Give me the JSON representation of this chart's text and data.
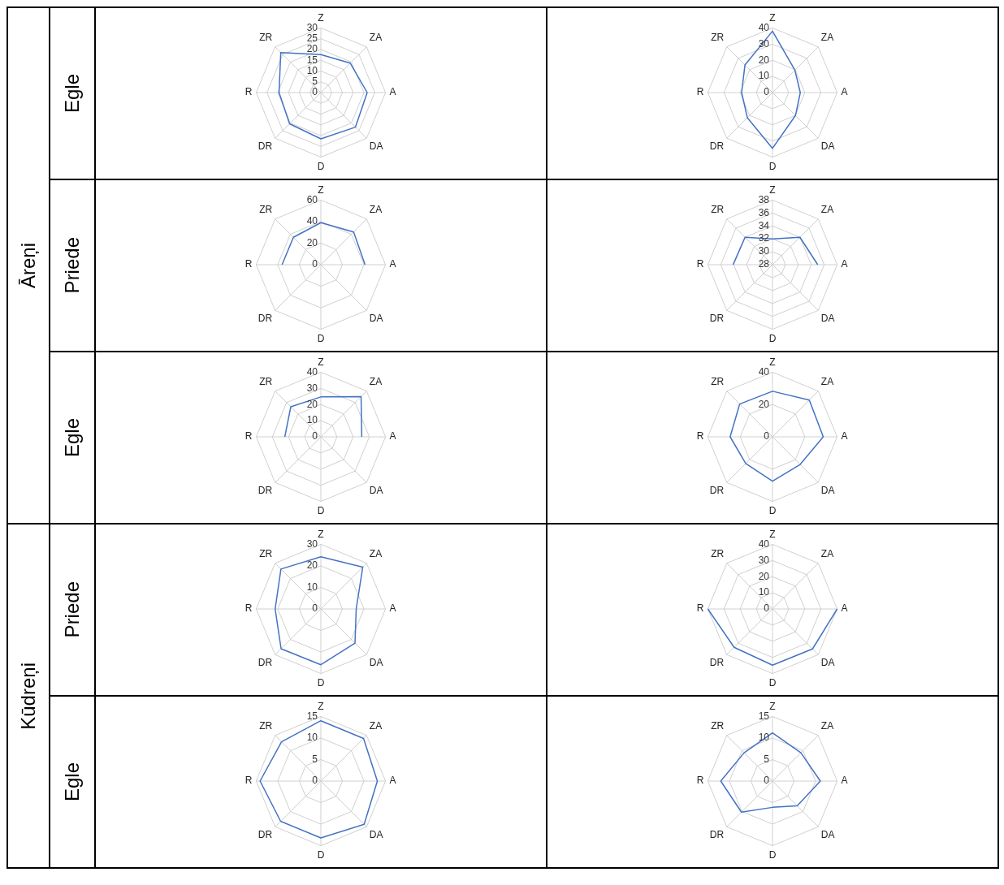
{
  "chart_data": [
    {
      "type": "radar",
      "title": "Egle",
      "subtitle": "Āreņi",
      "categories": [
        "Z",
        "ZA",
        "A",
        "DA",
        "D",
        "DR",
        "R",
        "ZR"
      ],
      "series": [
        {
          "color": "#4472c4",
          "values": [
            17.6,
            19.3,
            21.5,
            22.7,
            21.5,
            20.5,
            19.4,
            26.3
          ]
        }
      ],
      "ylim": [
        0,
        30
      ],
      "yticks": [
        0,
        5,
        10,
        15,
        20,
        25,
        30
      ],
      "grid": true,
      "marker": "none"
    },
    {
      "type": "radar",
      "categories": [
        "Z",
        "ZA",
        "A",
        "DA",
        "D",
        "DR",
        "R",
        "ZR"
      ],
      "series": [
        {
          "color": "#4472c4",
          "values": [
            38,
            19.6,
            17.2,
            20.1,
            34.5,
            22,
            19.1,
            24.1
          ]
        }
      ],
      "ylim": [
        0,
        40
      ],
      "yticks": [
        0,
        10,
        20,
        30,
        40
      ],
      "grid": true,
      "marker": "none"
    },
    {
      "type": "radar",
      "title": "Priede",
      "categories": [
        "Z",
        "ZA",
        "A",
        "DA",
        "D",
        "DR",
        "R",
        "ZR"
      ],
      "series": [
        {
          "color": "#4472c4",
          "values": [
            39,
            43,
            41,
            null,
            null,
            null,
            36,
            36
          ]
        }
      ],
      "ylim": [
        0,
        60
      ],
      "yticks": [
        0,
        20,
        40,
        60
      ],
      "grid": true,
      "marker": "none"
    },
    {
      "type": "radar",
      "categories": [
        "Z",
        "ZA",
        "A",
        "DA",
        "D",
        "DR",
        "R",
        "ZR"
      ],
      "series": [
        {
          "color": "#4472c4",
          "values": [
            32,
            34,
            35,
            null,
            null,
            null,
            34.1,
            34
          ]
        }
      ],
      "ylim": [
        28,
        38
      ],
      "yticks": [
        28,
        30,
        32,
        34,
        36,
        38
      ],
      "grid": true,
      "marker": "none"
    },
    {
      "type": "radar",
      "title": "Egle",
      "categories": [
        "Z",
        "ZA",
        "A",
        "DA",
        "D",
        "DR",
        "R",
        "ZR"
      ],
      "series": [
        {
          "color": "#4472c4",
          "values": [
            24.7,
            35.2,
            25.3,
            null,
            null,
            null,
            22.3,
            26.3
          ]
        }
      ],
      "ylim": [
        0,
        40
      ],
      "yticks": [
        0,
        10,
        20,
        30,
        40
      ],
      "grid": true,
      "marker": "none"
    },
    {
      "type": "radar",
      "categories": [
        "Z",
        "ZA",
        "A",
        "DA",
        "D",
        "DR",
        "R",
        "ZR"
      ],
      "series": [
        {
          "color": "#4472c4",
          "values": [
            28.2,
            32.2,
            31.4,
            24.2,
            27.5,
            23.4,
            26.2,
            28.7
          ]
        }
      ],
      "ylim": [
        0,
        40
      ],
      "yticks": [
        0,
        20,
        40
      ],
      "grid": true,
      "marker": "none"
    },
    {
      "type": "radar",
      "title": "Priede",
      "subtitle": "Kūdreņi",
      "categories": [
        "Z",
        "ZA",
        "A",
        "DA",
        "D",
        "DR",
        "R",
        "ZR"
      ],
      "series": [
        {
          "color": "#4472c4",
          "values": [
            24.2,
            27.5,
            16.4,
            22.4,
            25.9,
            26.1,
            21.2,
            26.2
          ]
        }
      ],
      "ylim": [
        0,
        30
      ],
      "yticks": [
        0,
        10,
        20,
        30
      ],
      "grid": true,
      "marker": "none"
    },
    {
      "type": "radar",
      "categories": [
        "Z",
        "ZA",
        "A",
        "DA",
        "D",
        "DR",
        "R",
        "ZR"
      ],
      "series": [
        {
          "color": "#4472c4",
          "values": [
            null,
            null,
            40,
            35,
            34.8,
            33.6,
            40,
            null
          ]
        }
      ],
      "ylim": [
        0,
        40
      ],
      "yticks": [
        0,
        10,
        20,
        30,
        40
      ],
      "grid": true,
      "marker": "none"
    },
    {
      "type": "radar",
      "title": "Egle",
      "categories": [
        "Z",
        "ZA",
        "A",
        "DA",
        "D",
        "DR",
        "R",
        "ZR"
      ],
      "series": [
        {
          "color": "#4472c4",
          "values": [
            14,
            14,
            13.1,
            14.2,
            13.2,
            13.2,
            14.1,
            12.9
          ]
        }
      ],
      "ylim": [
        0,
        15
      ],
      "yticks": [
        0,
        5,
        10,
        15
      ],
      "grid": true,
      "marker": "none"
    },
    {
      "type": "radar",
      "categories": [
        "Z",
        "ZA",
        "A",
        "DA",
        "D",
        "DR",
        "R",
        "ZR"
      ],
      "series": [
        {
          "color": "#4472c4",
          "values": [
            11.2,
            9.3,
            11.1,
            8.1,
            6.1,
            10.2,
            12,
            9.3
          ]
        }
      ],
      "ylim": [
        0,
        15
      ],
      "yticks": [
        0,
        5,
        10,
        15
      ],
      "grid": true,
      "marker": "none"
    }
  ]
}
